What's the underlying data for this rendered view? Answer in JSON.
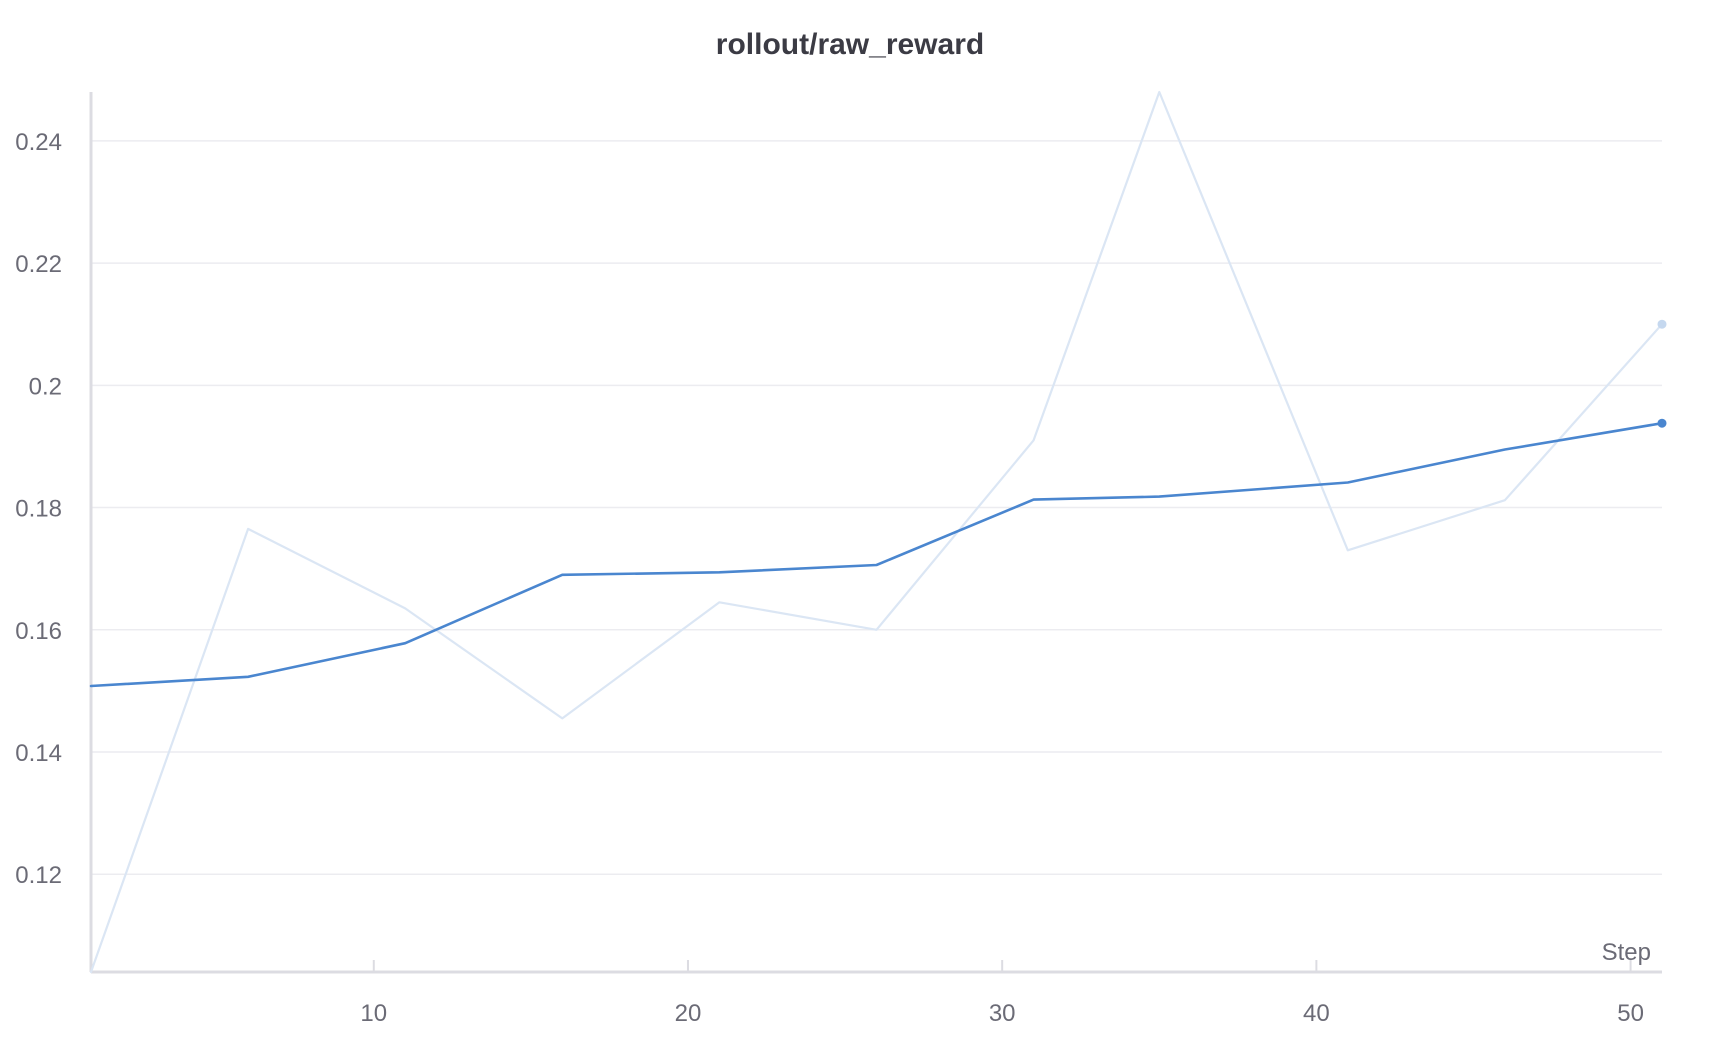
{
  "chart_data": {
    "type": "line",
    "title": "rollout/raw_reward",
    "xlabel": "Step",
    "ylabel": "",
    "xlim": [
      1,
      51
    ],
    "ylim": [
      0.104,
      0.248
    ],
    "x_ticks": [
      10,
      20,
      30,
      40,
      50
    ],
    "x_tick_labels": [
      "10",
      "20",
      "30",
      "40",
      "50"
    ],
    "y_ticks": [
      0.12,
      0.14,
      0.16,
      0.18,
      0.2,
      0.22,
      0.24
    ],
    "y_tick_labels": [
      "0.12",
      "0.14",
      "0.16",
      "0.18",
      "0.2",
      "0.22",
      "0.24"
    ],
    "grid": true,
    "x": [
      1,
      6,
      11,
      16,
      21,
      26,
      31,
      35,
      41,
      46,
      51
    ],
    "series": [
      {
        "role": "raw",
        "color": "#dbe6f4",
        "values": [
          0.104,
          0.1765,
          0.1635,
          0.1455,
          0.1645,
          0.16,
          0.191,
          0.248,
          0.173,
          0.1812,
          0.21
        ]
      },
      {
        "role": "smoothed",
        "color": "#4a86cf",
        "values": [
          0.1508,
          0.1523,
          0.1578,
          0.169,
          0.1694,
          0.1706,
          0.1813,
          0.1818,
          0.1841,
          0.1895,
          0.1938
        ]
      }
    ]
  }
}
